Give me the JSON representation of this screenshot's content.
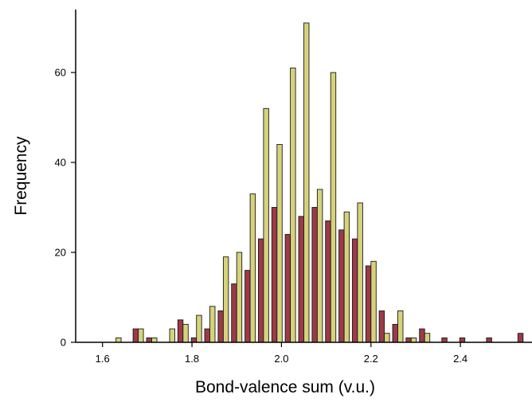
{
  "chart_data": {
    "type": "bar",
    "title": "",
    "xlabel": "Bond-valence sum (v.u.)",
    "ylabel": "Frequency",
    "xlim": [
      1.54,
      2.56
    ],
    "ylim": [
      0,
      74
    ],
    "x_ticks": [
      "1.6",
      "1.8",
      "2.0",
      "2.2",
      "2.4"
    ],
    "y_ticks": [
      "0",
      "20",
      "40",
      "60"
    ],
    "grid": false,
    "legend": "none",
    "colors": {
      "series_a": "#9c3a48",
      "series_b": "#d6d27a",
      "edge": "#1a1a1a"
    },
    "x": [
      1.63,
      1.68,
      1.71,
      1.75,
      1.78,
      1.81,
      1.84,
      1.87,
      1.9,
      1.93,
      1.96,
      1.99,
      2.02,
      2.05,
      2.08,
      2.11,
      2.14,
      2.17,
      2.2,
      2.23,
      2.26,
      2.29,
      2.32,
      2.37,
      2.41,
      2.47,
      2.54
    ],
    "series": [
      {
        "values": [
          0,
          3,
          1,
          0,
          5,
          1,
          3,
          7,
          13,
          16,
          23,
          30,
          24,
          28,
          30,
          27,
          25,
          23,
          17,
          7,
          4,
          1,
          3,
          1,
          1,
          1,
          2
        ]
      },
      {
        "values": [
          1,
          3,
          1,
          3,
          4,
          6,
          8,
          19,
          20,
          33,
          52,
          44,
          61,
          71,
          34,
          60,
          29,
          31,
          18,
          2,
          7,
          1,
          2,
          0,
          0,
          0,
          0
        ]
      }
    ]
  }
}
